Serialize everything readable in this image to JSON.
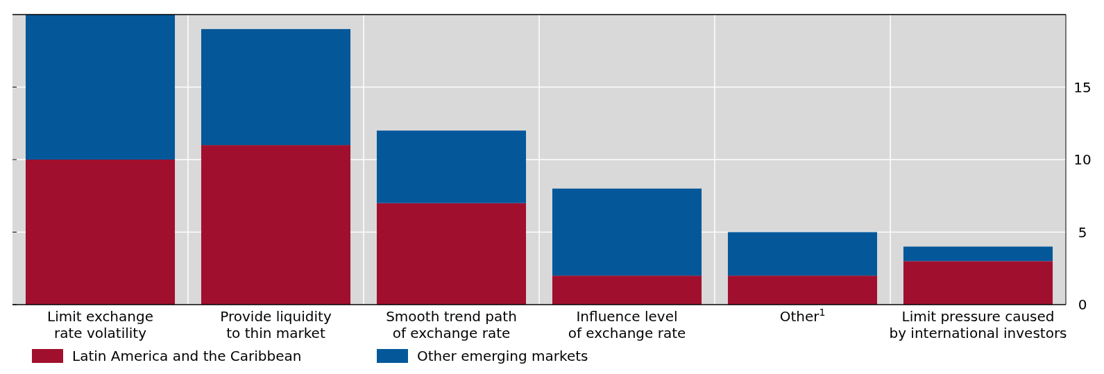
{
  "chart_data": {
    "type": "bar",
    "stacked": true,
    "categories": [
      "Limit exchange\nrate volatility",
      "Provide liquidity\nto thin market",
      "Smooth trend path\nof exchange rate",
      "Influence level\nof exchange rate",
      "Other$^{1}$",
      "Limit pressure caused\nby international investors"
    ],
    "series": [
      {
        "name": "Latin America and the Caribbean",
        "color": "#a0102e",
        "values": [
          10,
          11,
          7,
          2,
          2,
          3
        ]
      },
      {
        "name": "Other emerging markets",
        "color": "#04589a",
        "values": [
          10,
          8,
          5,
          6,
          3,
          1
        ]
      }
    ],
    "ylim": [
      0,
      20
    ],
    "yticks": [
      0,
      5,
      10,
      15
    ],
    "grid": true,
    "legend": "bottom"
  }
}
